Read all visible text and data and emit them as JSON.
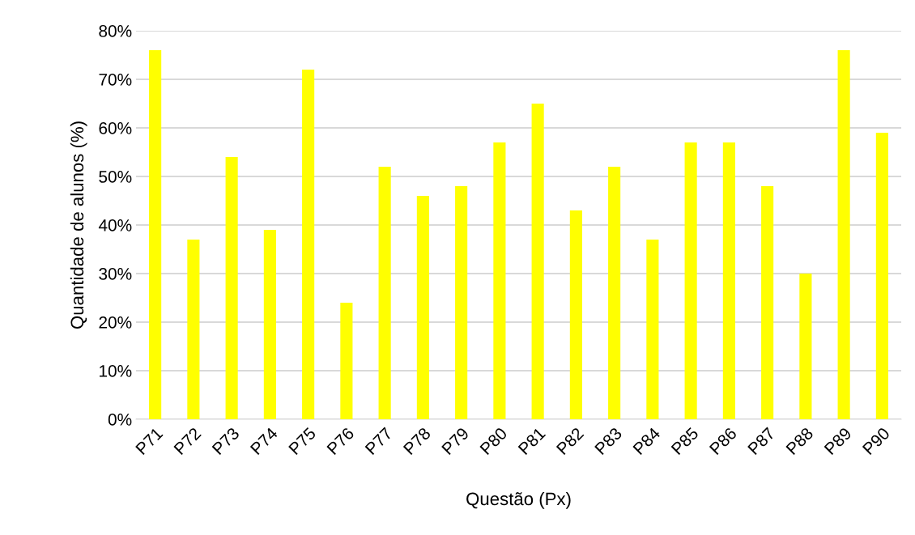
{
  "chart_data": {
    "type": "bar",
    "xlabel": "Questão (Px)",
    "ylabel": "Quantidade de alunos (%)",
    "categories": [
      "P71",
      "P72",
      "P73",
      "P74",
      "P75",
      "P76",
      "P77",
      "P78",
      "P79",
      "P80",
      "P81",
      "P82",
      "P83",
      "P84",
      "P85",
      "P86",
      "P87",
      "P88",
      "P89",
      "P90"
    ],
    "values": [
      76,
      37,
      54,
      39,
      72,
      24,
      52,
      46,
      48,
      57,
      65,
      43,
      52,
      37,
      57,
      57,
      48,
      30,
      76,
      59
    ],
    "color": "#ffff00",
    "ylim": [
      0,
      80
    ],
    "yticks": [
      {
        "value": 0,
        "label": "0%"
      },
      {
        "value": 10,
        "label": "10%"
      },
      {
        "value": 20,
        "label": "20%"
      },
      {
        "value": 30,
        "label": "30%"
      },
      {
        "value": 40,
        "label": "40%"
      },
      {
        "value": 50,
        "label": "50%"
      },
      {
        "value": 60,
        "label": "60%"
      },
      {
        "value": 70,
        "label": "70%"
      },
      {
        "value": 80,
        "label": "80%"
      }
    ],
    "grid": "y"
  }
}
